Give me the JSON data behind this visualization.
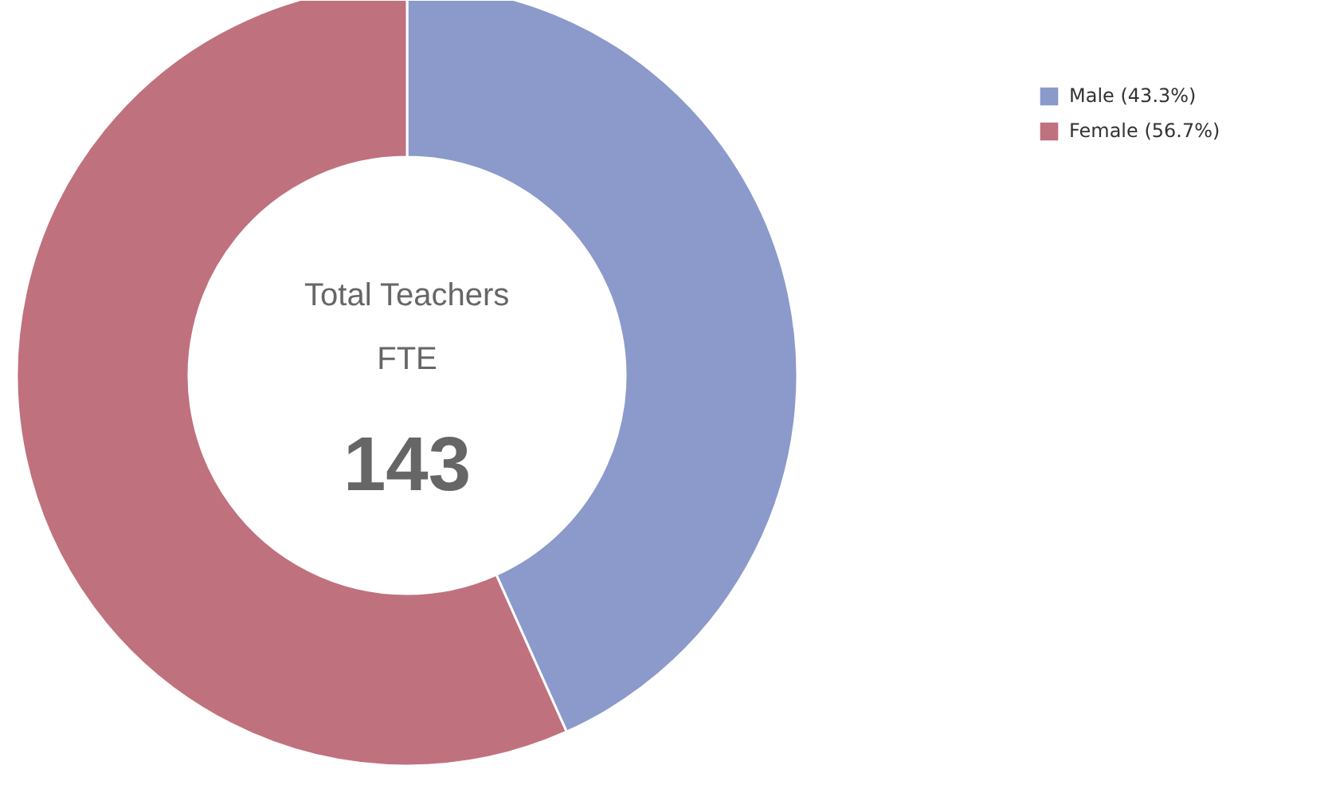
{
  "chart_data": {
    "type": "donut",
    "categories": [
      "Male (43.3%)",
      "Female (56.7%)"
    ],
    "values": [
      43.3,
      56.7
    ],
    "colors": [
      "#8b9acb",
      "#c0717e"
    ],
    "annotations": [
      "Total Teachers",
      "FTE",
      "143"
    ],
    "legend": "top right"
  }
}
